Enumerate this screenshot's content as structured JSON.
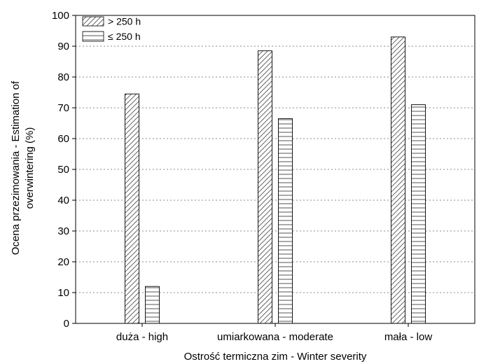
{
  "chart_data": {
    "type": "bar",
    "title": "",
    "xlabel": "Ostrość termiczna zim - Winter severity",
    "ylabel": "Ocena przezimowania - Estimation of overwintering (%)",
    "ylabel_lines": [
      "Ocena przezimowania - Estimation of",
      "overwintering (%)"
    ],
    "categories": [
      "duża - high",
      "umiarkowana - moderate",
      "mała - low"
    ],
    "ylim": [
      0,
      100
    ],
    "yticks": [
      0,
      10,
      20,
      30,
      40,
      50,
      60,
      70,
      80,
      90,
      100
    ],
    "grid": "horizontal dashed",
    "legend_position": "top-left",
    "series": [
      {
        "name": "> 250 h",
        "values": [
          74.5,
          88.5,
          93.0
        ],
        "pattern": "diagonal-hatch"
      },
      {
        "name": "≤ 250 h",
        "values": [
          12.0,
          66.5,
          71.0
        ],
        "pattern": "horizontal-lines"
      }
    ]
  }
}
